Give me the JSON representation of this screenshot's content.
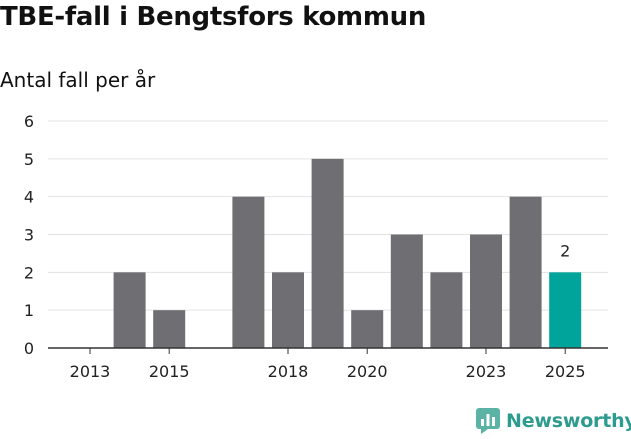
{
  "title": "TBE-fall i Bengtsfors kommun",
  "subtitle": "Antal fall per år",
  "brand": {
    "name": "Newsworthy",
    "icon": "bar-chart-logo-icon",
    "color": "#2e9b8f"
  },
  "chart_data": {
    "type": "bar",
    "title": "TBE-fall i Bengtsfors kommun",
    "ylabel": "Antal fall per år",
    "xlabel": "",
    "categories": [
      "2013",
      "2014",
      "2015",
      "2016",
      "2017",
      "2018",
      "2019",
      "2020",
      "2021",
      "2022",
      "2023",
      "2024",
      "2025"
    ],
    "values": [
      0,
      2,
      1,
      0,
      4,
      2,
      5,
      1,
      3,
      2,
      3,
      4,
      2
    ],
    "x_tick_labels": [
      "2013",
      "2015",
      "2018",
      "2020",
      "2023",
      "2025"
    ],
    "ylim": [
      0,
      6
    ],
    "y_ticks": [
      "0",
      "1",
      "2",
      "3",
      "4",
      "5",
      "6"
    ],
    "highlight_index": 12,
    "highlight_label": "2",
    "bar_color": "#6f6e73",
    "highlight_color": "#00a49a",
    "grid_color": "#e3e3e3",
    "grid": true
  }
}
